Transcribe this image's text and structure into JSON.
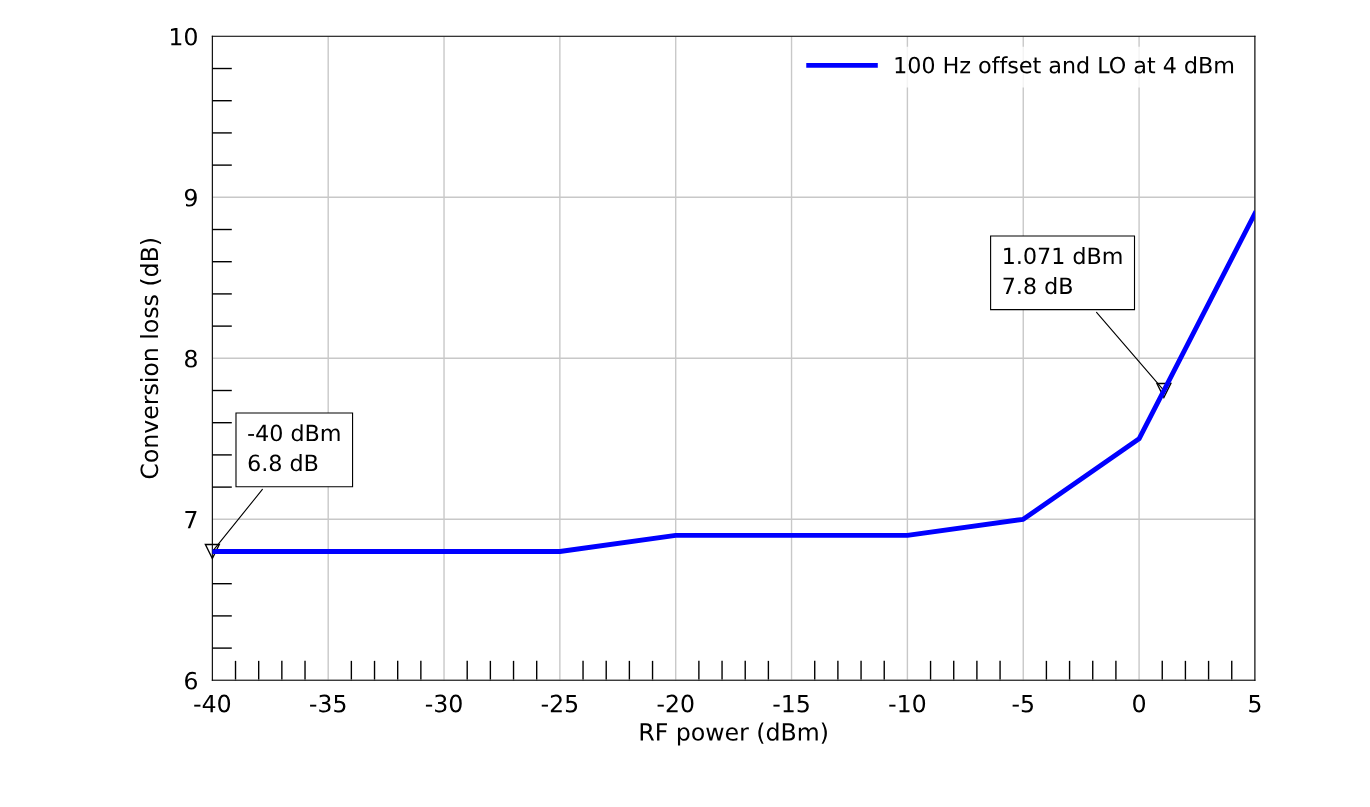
{
  "chart_data": {
    "type": "line",
    "xlabel": "RF power (dBm)",
    "ylabel": "Conversion loss (dB)",
    "x": [
      -40,
      -35,
      -30,
      -25,
      -20,
      -15,
      -10,
      -5,
      0,
      5
    ],
    "series": [
      {
        "name": "100 Hz offset and LO at 4 dBm",
        "color": "#0000ff",
        "values": [
          6.8,
          6.8,
          6.8,
          6.8,
          6.9,
          6.9,
          6.9,
          7.0,
          7.5,
          8.9
        ]
      }
    ],
    "xlim": [
      -40,
      5
    ],
    "xticks": [
      -40,
      -35,
      -30,
      -25,
      -20,
      -15,
      -10,
      -5,
      0,
      5
    ],
    "ylim": [
      6,
      10
    ],
    "yticks": [
      6,
      7,
      8,
      9,
      10
    ],
    "annotations": [
      {
        "text": "-40 dBm\n6.8 dB",
        "x": -40,
        "y": 6.8
      },
      {
        "text": "1.071 dBm\n7.8 dB",
        "x": 1.071,
        "y": 7.8
      }
    ],
    "grid": true,
    "legend": "top right",
    "line_style": "solid",
    "marker": "none"
  }
}
